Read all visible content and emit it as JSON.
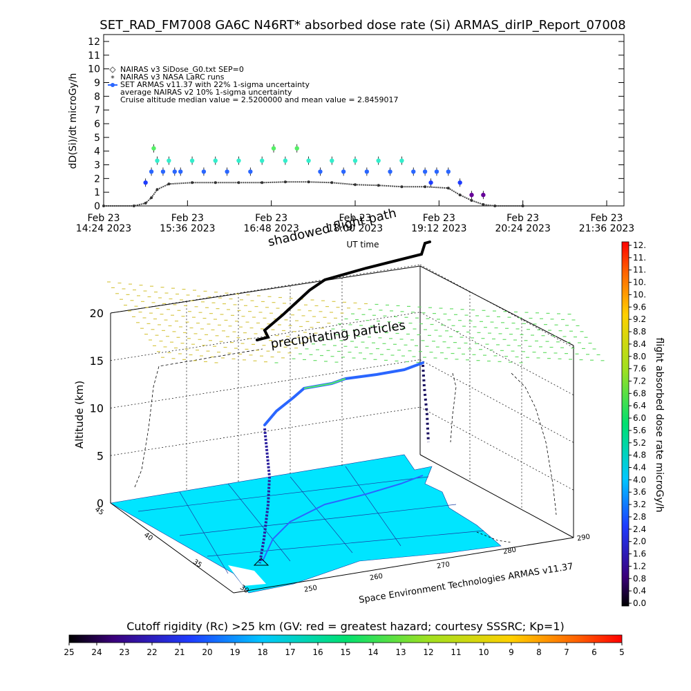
{
  "header": {
    "title": "SET_RAD_FM7008  GA6C N46RT* absorbed dose rate (Si) ARMAS_dirIP_Report_07008"
  },
  "timeseries": {
    "ylabel": "dD(Si)/dt microGy/h",
    "xlabel": "UT time",
    "legend": [
      "NAIRAS v3 SiDose_G0.txt SEP=0",
      "NAIRAS v3 NASA LaRC runs",
      "SET ARMAS v11.37 with 22% 1-sigma uncertainty",
      "average NAIRAS v2 10% 1-sigma uncertainty",
      "Cruise altitude median value = 2.5200000 and mean value = 2.8459017"
    ],
    "y_ticks": [
      "0",
      "1",
      "2",
      "3",
      "4",
      "5",
      "6",
      "7",
      "8",
      "9",
      "10",
      "11",
      "12"
    ],
    "x_ticks": [
      {
        "date": "Feb 23",
        "time": "14:24 2023"
      },
      {
        "date": "Feb 23",
        "time": "15:36 2023"
      },
      {
        "date": "Feb 23",
        "time": "16:48 2023"
      },
      {
        "date": "Feb 23",
        "time": "18:00 2023"
      },
      {
        "date": "Feb 23",
        "time": "19:12 2023"
      },
      {
        "date": "Feb 23",
        "time": "20:24 2023"
      },
      {
        "date": "Feb 23",
        "time": "21:36 2023"
      }
    ],
    "overlay_label": "shadowed flight path"
  },
  "globe": {
    "altitude_label": "Altitude (km)",
    "altitude_ticks": [
      "0",
      "5",
      "10",
      "15",
      "20"
    ],
    "lat_ticks": [
      "45",
      "40",
      "35",
      "30"
    ],
    "lon_ticks": [
      "250",
      "260",
      "270",
      "280",
      "290"
    ],
    "particle_label": "precipitating particles",
    "credit": "Space Environment Technologies ARMAS v11.37"
  },
  "right_colorbar": {
    "label": "flight absorbed dose rate microGy/h",
    "ticks": [
      "12.",
      "11.",
      "11.",
      "10.",
      "10.",
      "9.6",
      "9.2",
      "8.8",
      "8.4",
      "8.0",
      "7.6",
      "7.2",
      "6.8",
      "6.4",
      "6.0",
      "5.6",
      "5.2",
      "4.8",
      "4.4",
      "4.0",
      "3.6",
      "3.2",
      "2.8",
      "2.4",
      "2.0",
      "1.6",
      "1.2",
      "0.8",
      "0.4",
      "0.0"
    ]
  },
  "bottom_colorbar": {
    "title": "Cutoff rigidity (Rc) >25 km (GV: red = greatest hazard; courtesy SSSRC; Kp=1)",
    "ticks": [
      "25",
      "24",
      "23",
      "22",
      "21",
      "20",
      "19",
      "18",
      "17",
      "16",
      "15",
      "14",
      "13",
      "12",
      "11",
      "10",
      "9",
      "8",
      "7",
      "6",
      "5"
    ]
  },
  "colors": {
    "armas_cyan": "#33eecc",
    "armas_blue": "#2a66ff",
    "armas_green": "#55ee66",
    "armas_dark": "#2b1f9e",
    "armas_purple": "#660099",
    "nairas_line": "#444444",
    "map_fill": "#00e5ff",
    "map_lines": "#1a3aa0",
    "particle_green": "#66dd66",
    "particle_yellow": "#d8c84a"
  },
  "chart_data": {
    "type": "scatter",
    "title": "SET_RAD_FM7008  GA6C N46RT* absorbed dose rate (Si) ARMAS_dirIP_Report_07008",
    "xlabel": "UT time",
    "ylabel": "dD(Si)/dt microGy/h",
    "ylim": [
      0,
      12
    ],
    "xlim": [
      "2023-02-23T14:24",
      "2023-02-23T21:36"
    ],
    "series": [
      {
        "name": "SET ARMAS v11.37 with 22% 1-sigma uncertainty",
        "x": [
          "15:00",
          "15:05",
          "15:07",
          "15:10",
          "15:15",
          "15:20",
          "15:25",
          "15:30",
          "15:40",
          "15:50",
          "16:00",
          "16:10",
          "16:20",
          "16:30",
          "16:40",
          "16:50",
          "17:00",
          "17:10",
          "17:20",
          "17:30",
          "17:40",
          "17:50",
          "18:00",
          "18:10",
          "18:20",
          "18:30",
          "18:40",
          "18:50",
          "19:00",
          "19:05",
          "19:10",
          "19:20",
          "19:30",
          "19:40",
          "19:50"
        ],
        "y": [
          1.7,
          2.5,
          4.2,
          3.3,
          2.5,
          3.3,
          2.5,
          2.5,
          3.3,
          2.5,
          3.3,
          2.5,
          3.3,
          2.5,
          3.3,
          4.2,
          3.3,
          4.2,
          3.3,
          2.5,
          3.3,
          2.5,
          3.3,
          2.5,
          3.3,
          2.5,
          3.3,
          2.5,
          2.5,
          1.7,
          2.5,
          2.5,
          1.7,
          0.8,
          0.8
        ]
      },
      {
        "name": "NAIRAS v3 SiDose_G0.txt SEP=0",
        "x": [
          "14:24",
          "14:50",
          "15:00",
          "15:05",
          "15:10",
          "15:20",
          "15:40",
          "16:00",
          "16:20",
          "16:40",
          "17:00",
          "17:20",
          "17:40",
          "18:00",
          "18:20",
          "18:40",
          "19:00",
          "19:20",
          "19:30",
          "19:40",
          "19:50",
          "20:00",
          "20:24"
        ],
        "y": [
          0.0,
          0.0,
          0.2,
          0.6,
          1.2,
          1.6,
          1.7,
          1.7,
          1.7,
          1.7,
          1.75,
          1.75,
          1.7,
          1.55,
          1.5,
          1.4,
          1.4,
          1.3,
          0.8,
          0.4,
          0.1,
          0.0,
          0.0
        ]
      }
    ],
    "legend_position": "top-left",
    "grid": false
  }
}
